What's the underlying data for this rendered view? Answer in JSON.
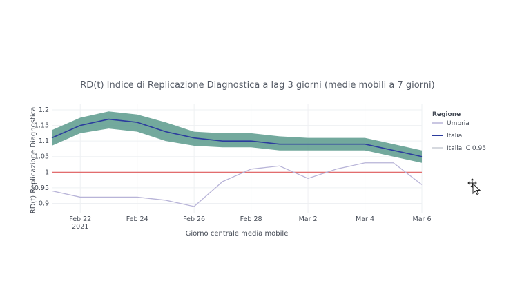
{
  "chart_data": {
    "type": "line",
    "title": "RD(t) Indice di Replicazione Diagnostica a lag 3 giorni (medie mobili a 7 giorni)",
    "xlabel": "Giorno centrale media mobile",
    "ylabel": "RD(t) Replicazione Diagnostica",
    "x": [
      "2021-02-21",
      "2021-02-22",
      "2021-02-23",
      "2021-02-24",
      "2021-02-25",
      "2021-02-26",
      "2021-02-27",
      "2021-02-28",
      "2021-03-01",
      "2021-03-02",
      "2021-03-03",
      "2021-03-04",
      "2021-03-05",
      "2021-03-06"
    ],
    "x_tick_labels": [
      {
        "date": "2021-02-22",
        "label": "Feb 22",
        "sub": "2021"
      },
      {
        "date": "2021-02-24",
        "label": "Feb 24",
        "sub": ""
      },
      {
        "date": "2021-02-26",
        "label": "Feb 26",
        "sub": ""
      },
      {
        "date": "2021-02-28",
        "label": "Feb 28",
        "sub": ""
      },
      {
        "date": "2021-03-02",
        "label": "Mar 2",
        "sub": ""
      },
      {
        "date": "2021-03-04",
        "label": "Mar 4",
        "sub": ""
      },
      {
        "date": "2021-03-06",
        "label": "Mar 6",
        "sub": ""
      }
    ],
    "y_ticks": [
      0.9,
      0.95,
      1,
      1.05,
      1.1,
      1.15,
      1.2
    ],
    "y_tick_labels": [
      "0.9",
      "0.95",
      "1",
      "1.05",
      "1.1",
      "1.15",
      "1.2"
    ],
    "ylim": [
      0.87,
      1.22
    ],
    "legend_title": "Regione",
    "legend_position": "right",
    "reference_line": {
      "y": 1,
      "color": "#e05a5a"
    },
    "series": [
      {
        "name": "Umbria",
        "color": "#b8b4d8",
        "values": [
          0.94,
          0.92,
          0.92,
          0.92,
          0.91,
          0.89,
          0.97,
          1.01,
          1.02,
          0.98,
          1.01,
          1.03,
          1.03,
          0.96
        ]
      },
      {
        "name": "Italia",
        "color": "#2c3c9e",
        "values": [
          1.11,
          1.15,
          1.17,
          1.16,
          1.13,
          1.11,
          1.1,
          1.1,
          1.09,
          1.09,
          1.09,
          1.09,
          1.07,
          1.05
        ]
      },
      {
        "name": "Italia IC 0.95",
        "color": "#5a9a8c",
        "line_color": "#c8ccd4",
        "lower": [
          1.085,
          1.125,
          1.14,
          1.13,
          1.1,
          1.085,
          1.08,
          1.08,
          1.07,
          1.07,
          1.07,
          1.07,
          1.05,
          1.03
        ],
        "upper": [
          1.135,
          1.175,
          1.195,
          1.185,
          1.16,
          1.13,
          1.125,
          1.125,
          1.115,
          1.11,
          1.11,
          1.11,
          1.09,
          1.07
        ]
      }
    ]
  }
}
